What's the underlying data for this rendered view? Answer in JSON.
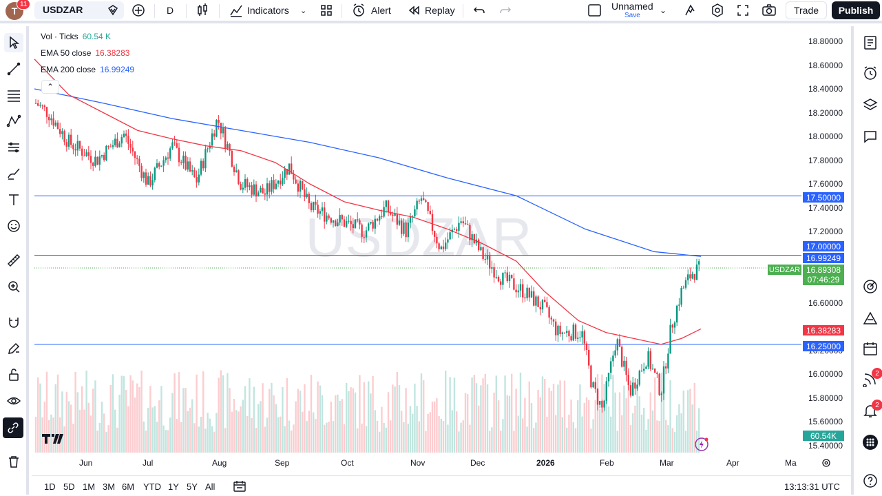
{
  "header": {
    "avatar_letter": "T",
    "notifications": "11",
    "symbol": "USDZAR",
    "interval": "D",
    "indicators_label": "Indicators",
    "alert_label": "Alert",
    "replay_label": "Replay",
    "layout_name": "Unnamed",
    "layout_save": "Save",
    "trade_label": "Trade",
    "publish_label": "Publish"
  },
  "legend": {
    "vol_label": "Vol · Ticks",
    "vol_value": "60.54 K",
    "ema50_label": "EMA 50 close",
    "ema50_value": "16.38283",
    "ema200_label": "EMA 200 close",
    "ema200_value": "16.99249"
  },
  "watermark": "USDZAR",
  "price_labels": {
    "level_1750": "17.50000",
    "level_1700": "17.00000",
    "ema200": "16.99249",
    "symbol": "USDZAR",
    "last_price": "16.89308",
    "countdown": "07:46:29",
    "ema50": "16.38283",
    "level_1625": "16.25000",
    "volume": "60.54K"
  },
  "colors": {
    "up": "#089981",
    "down": "#f23645",
    "ema50": "#f23645",
    "ema200": "#2962ff",
    "hline": "#2962ff",
    "last": "#4caf50"
  },
  "bottom": {
    "ranges": [
      "1D",
      "5D",
      "1M",
      "3M",
      "6M",
      "YTD",
      "1Y",
      "5Y",
      "All"
    ],
    "clock": "13:13:31 UTC"
  },
  "right_badges": {
    "ideas": "2",
    "alerts": "2"
  },
  "chart_data": {
    "type": "candlestick",
    "symbol": "USDZAR",
    "x_tick_labels": [
      "Jun",
      "Jul",
      "Aug",
      "Sep",
      "Oct",
      "Nov",
      "Dec",
      "2026",
      "Feb",
      "Mar",
      "Apr",
      "Ma"
    ],
    "y_tick_labels": [
      "18.80000",
      "18.60000",
      "18.40000",
      "18.20000",
      "18.00000",
      "17.80000",
      "17.60000",
      "17.40000",
      "17.20000",
      "16.60000",
      "16.00000",
      "15.80000",
      "15.60000",
      "15.40000"
    ],
    "y_tick_values": [
      18.8,
      18.6,
      18.4,
      18.2,
      18.0,
      17.8,
      17.6,
      17.4,
      17.2,
      16.6,
      16.0,
      15.8,
      15.6,
      15.4
    ],
    "y_tick_hidden_label": "16.20000",
    "ylim": [
      15.35,
      18.9
    ],
    "horizontal_levels": [
      17.5,
      17.0,
      16.25
    ],
    "last_price": 16.89308,
    "approx_close_path": [
      {
        "month": "May",
        "value": 18.3
      },
      {
        "month": "Jun",
        "value": 17.9
      },
      {
        "month": "Jul",
        "value": 17.85
      },
      {
        "month": "Aug",
        "value": 18.05
      },
      {
        "month": "Sep",
        "value": 17.65
      },
      {
        "month": "Oct",
        "value": 17.3
      },
      {
        "month": "Nov",
        "value": 17.35
      },
      {
        "month": "Dec",
        "value": 16.9
      },
      {
        "month": "2026",
        "value": 16.4
      },
      {
        "month": "Feb",
        "value": 15.9
      },
      {
        "month": "Mar",
        "value": 16.5
      },
      {
        "month": "Mar-mid",
        "value": 16.89
      }
    ],
    "ema50_end": 16.38283,
    "ema200_end": 16.99249,
    "grid": false
  }
}
